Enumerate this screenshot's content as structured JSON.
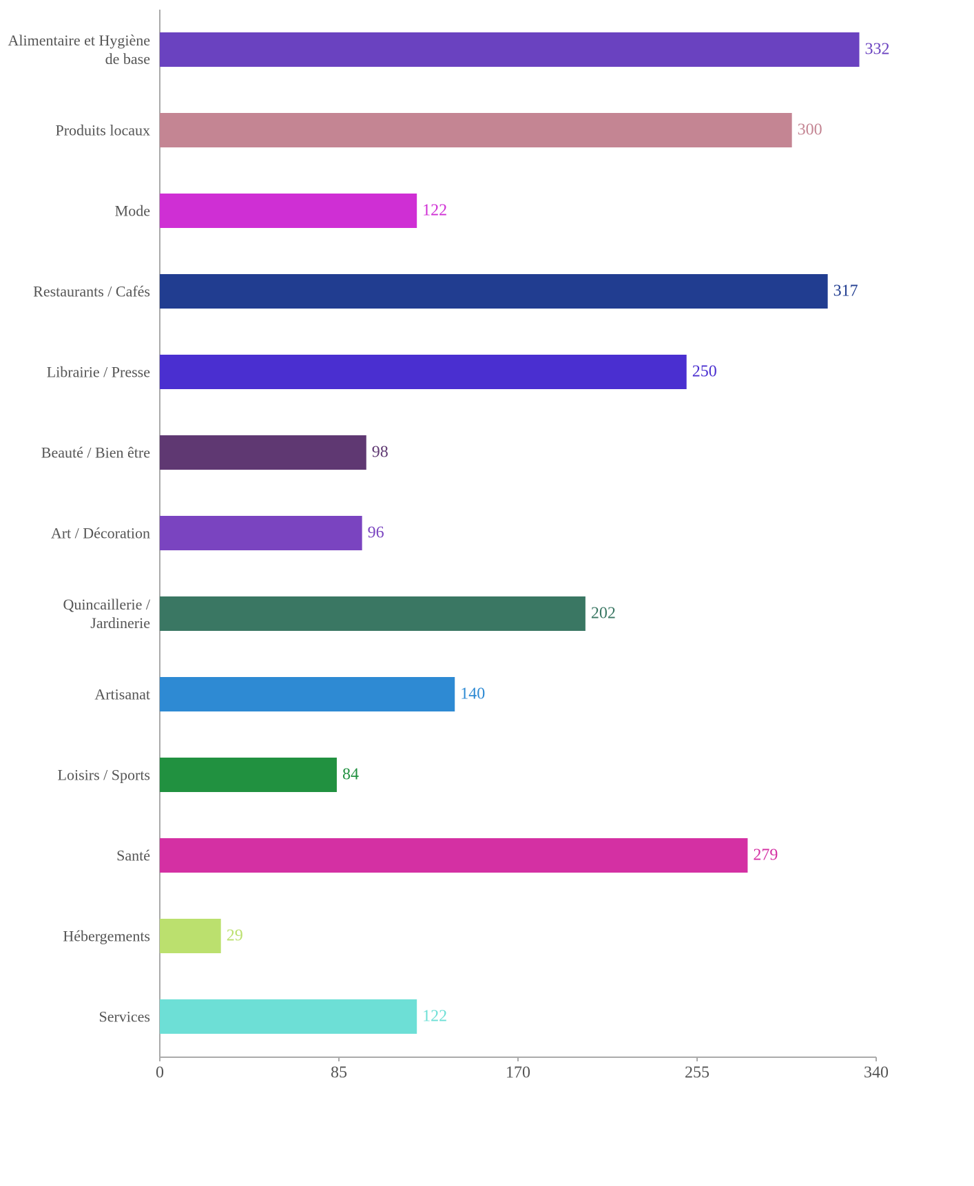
{
  "chart_data": {
    "type": "barh",
    "categories": [
      "Alimentaire et Hygiène de base",
      "Produits locaux",
      "Mode",
      "Restaurants / Cafés",
      "Librairie / Presse",
      "Beauté / Bien être",
      "Art / Décoration",
      "Quincaillerie / Jardinerie",
      "Artisanat",
      "Loisirs / Sports",
      "Santé",
      "Hébergements",
      "Services"
    ],
    "values": [
      332,
      300,
      122,
      317,
      250,
      98,
      96,
      202,
      140,
      84,
      279,
      29,
      122
    ],
    "colors": [
      "#6a42c0",
      "#c48593",
      "#cf2fd4",
      "#213d90",
      "#4a2fd0",
      "#5f3872",
      "#7a44c0",
      "#3a7763",
      "#2e8ad3",
      "#219140",
      "#d430a3",
      "#bbe06e",
      "#6ddfd6"
    ],
    "xlim": [
      0,
      340
    ],
    "xticks": [
      0,
      85,
      170,
      255,
      340
    ]
  }
}
